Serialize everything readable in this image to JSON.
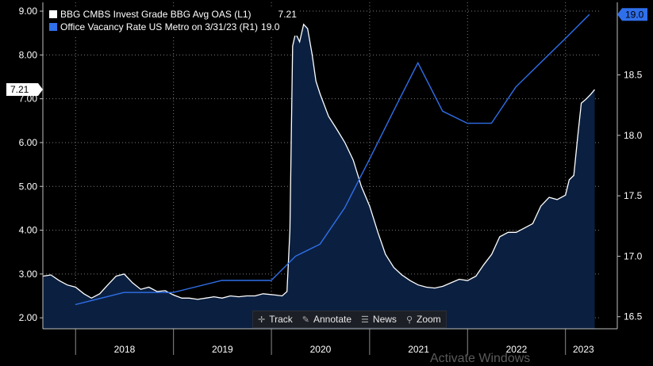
{
  "chart_data": {
    "type": "line",
    "colors": {
      "background": "#000000",
      "plot_background": "#000000",
      "grid": "#7a7a7a",
      "left_series": "#ffffff",
      "left_fill": "#0b2040",
      "right_series": "#2f6fea",
      "right_label_bg": "#2f6fea",
      "current_label_bg": "#ffffff"
    },
    "left_axis": {
      "ticks": [
        "2.00",
        "3.00",
        "4.00",
        "5.00",
        "6.00",
        "7.00",
        "8.00",
        "9.00"
      ],
      "range": [
        1.75,
        9.2
      ],
      "current_label": "7.21"
    },
    "right_axis": {
      "ticks": [
        "16.5",
        "17.0",
        "17.5",
        "18.0",
        "18.5",
        "19.0"
      ],
      "range": [
        16.4,
        19.1
      ],
      "current_label": "19.0"
    },
    "x_axis": {
      "labels": [
        "2018",
        "2019",
        "2020",
        "2021",
        "2022",
        "2023"
      ],
      "range": [
        "2017-09-01",
        "2023-05-15"
      ]
    },
    "series": [
      {
        "name": "BBG CMBS Invest Grade BBG Avg OAS (L1)",
        "axis": "left",
        "style": "area",
        "last_value": "7.21",
        "points": [
          [
            "2017-09-01",
            2.95
          ],
          [
            "2017-10-01",
            2.98
          ],
          [
            "2017-11-01",
            2.85
          ],
          [
            "2017-12-01",
            2.75
          ],
          [
            "2018-01-01",
            2.7
          ],
          [
            "2018-02-01",
            2.55
          ],
          [
            "2018-03-01",
            2.45
          ],
          [
            "2018-04-01",
            2.55
          ],
          [
            "2018-05-01",
            2.75
          ],
          [
            "2018-06-01",
            2.95
          ],
          [
            "2018-07-01",
            3.0
          ],
          [
            "2018-08-01",
            2.8
          ],
          [
            "2018-09-01",
            2.65
          ],
          [
            "2018-10-01",
            2.7
          ],
          [
            "2018-11-01",
            2.6
          ],
          [
            "2018-12-01",
            2.62
          ],
          [
            "2019-01-01",
            2.52
          ],
          [
            "2019-02-01",
            2.45
          ],
          [
            "2019-03-01",
            2.45
          ],
          [
            "2019-04-01",
            2.42
          ],
          [
            "2019-05-01",
            2.45
          ],
          [
            "2019-06-01",
            2.48
          ],
          [
            "2019-07-01",
            2.45
          ],
          [
            "2019-08-01",
            2.5
          ],
          [
            "2019-09-01",
            2.48
          ],
          [
            "2019-10-01",
            2.5
          ],
          [
            "2019-11-01",
            2.5
          ],
          [
            "2019-12-01",
            2.55
          ],
          [
            "2020-01-15",
            2.52
          ],
          [
            "2020-02-10",
            2.5
          ],
          [
            "2020-02-28",
            2.6
          ],
          [
            "2020-03-10",
            4.0
          ],
          [
            "2020-03-20",
            8.2
          ],
          [
            "2020-03-31",
            8.5
          ],
          [
            "2020-04-15",
            8.3
          ],
          [
            "2020-04-30",
            8.7
          ],
          [
            "2020-05-15",
            8.6
          ],
          [
            "2020-06-01",
            8.0
          ],
          [
            "2020-06-15",
            7.4
          ],
          [
            "2020-07-01",
            7.1
          ],
          [
            "2020-08-01",
            6.6
          ],
          [
            "2020-09-01",
            6.3
          ],
          [
            "2020-10-01",
            6.0
          ],
          [
            "2020-11-01",
            5.6
          ],
          [
            "2020-12-01",
            5.0
          ],
          [
            "2021-01-01",
            4.55
          ],
          [
            "2021-02-01",
            3.95
          ],
          [
            "2021-03-01",
            3.45
          ],
          [
            "2021-04-01",
            3.15
          ],
          [
            "2021-05-01",
            2.98
          ],
          [
            "2021-06-01",
            2.85
          ],
          [
            "2021-07-01",
            2.75
          ],
          [
            "2021-08-01",
            2.7
          ],
          [
            "2021-09-01",
            2.68
          ],
          [
            "2021-10-01",
            2.72
          ],
          [
            "2021-11-01",
            2.8
          ],
          [
            "2021-12-01",
            2.88
          ],
          [
            "2022-01-01",
            2.85
          ],
          [
            "2022-02-01",
            2.95
          ],
          [
            "2022-03-01",
            3.2
          ],
          [
            "2022-04-01",
            3.45
          ],
          [
            "2022-05-01",
            3.85
          ],
          [
            "2022-06-01",
            3.95
          ],
          [
            "2022-07-01",
            3.95
          ],
          [
            "2022-08-01",
            4.05
          ],
          [
            "2022-09-01",
            4.15
          ],
          [
            "2022-10-01",
            4.55
          ],
          [
            "2022-11-01",
            4.75
          ],
          [
            "2022-12-01",
            4.7
          ],
          [
            "2023-01-01",
            4.8
          ],
          [
            "2023-01-15",
            5.15
          ],
          [
            "2023-02-01",
            5.25
          ],
          [
            "2023-02-15",
            6.1
          ],
          [
            "2023-03-01",
            6.9
          ],
          [
            "2023-03-20",
            7.0
          ],
          [
            "2023-04-05",
            7.1
          ],
          [
            "2023-04-20",
            7.21
          ]
        ]
      },
      {
        "name": "Office Vacancy Rate US Metro on 3/31/23 (R1)",
        "axis": "right",
        "style": "line",
        "last_value": "19.0",
        "points": [
          [
            "2017-12-31",
            16.6
          ],
          [
            "2018-06-30",
            16.7
          ],
          [
            "2018-12-31",
            16.7
          ],
          [
            "2019-06-30",
            16.8
          ],
          [
            "2019-12-31",
            16.8
          ],
          [
            "2020-03-31",
            17.0
          ],
          [
            "2020-06-30",
            17.1
          ],
          [
            "2020-09-30",
            17.4
          ],
          [
            "2020-12-31",
            17.8
          ],
          [
            "2021-03-31",
            18.2
          ],
          [
            "2021-06-30",
            18.6
          ],
          [
            "2021-09-30",
            18.2
          ],
          [
            "2021-12-31",
            18.1
          ],
          [
            "2022-03-31",
            18.1
          ],
          [
            "2022-06-30",
            18.4
          ],
          [
            "2022-09-30",
            18.6
          ],
          [
            "2022-12-31",
            18.8
          ],
          [
            "2023-03-31",
            19.0
          ]
        ]
      }
    ]
  },
  "legend": {
    "items": [
      {
        "label": "BBG CMBS Invest Grade BBG Avg OAS (L1)",
        "value": "7.21"
      },
      {
        "label": "Office Vacancy Rate US Metro on 3/31/23 (R1)",
        "value": "19.0"
      }
    ]
  },
  "toolbar": {
    "track": "Track",
    "annotate": "Annotate",
    "news": "News",
    "zoom": "Zoom"
  },
  "watermark": "Activate Windows"
}
